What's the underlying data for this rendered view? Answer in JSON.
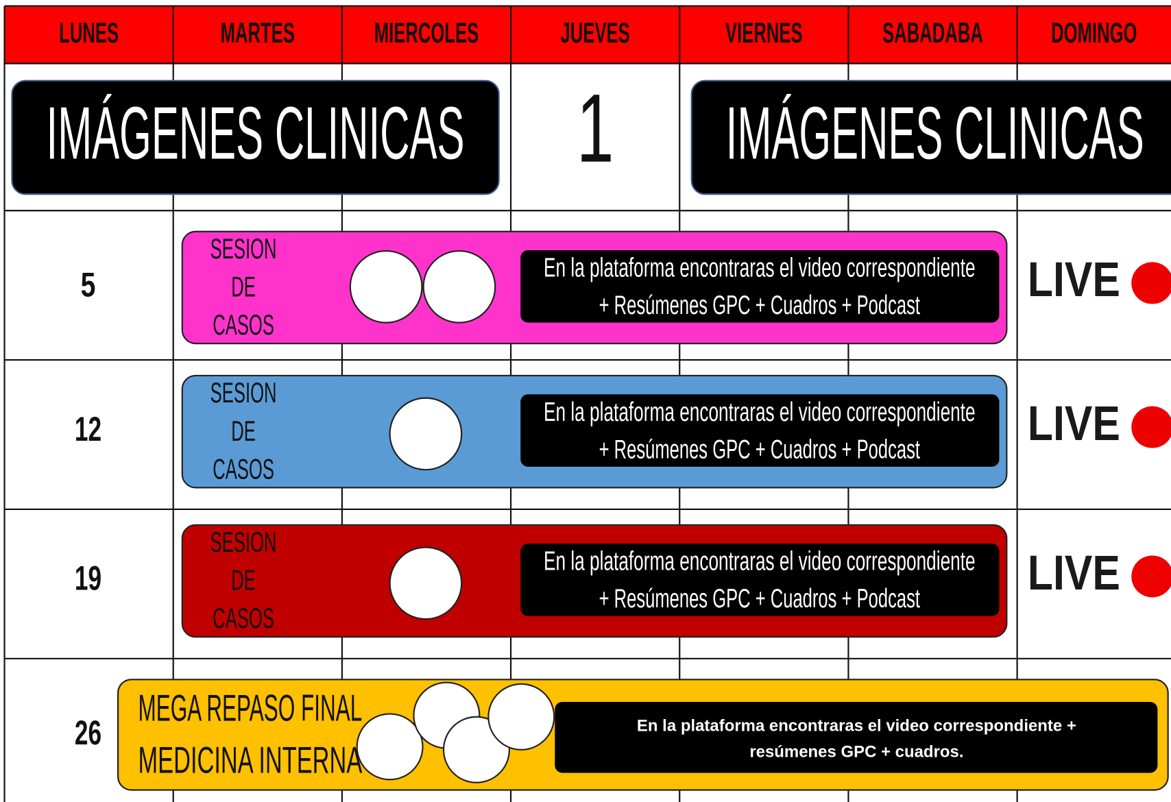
{
  "header": {
    "days": [
      "LUNES",
      "MARTES",
      "MIERCOLES",
      "JUEVES",
      "VIERNES",
      "SABADABA",
      "DOMINGO"
    ]
  },
  "weeks": [
    {
      "banner_left": "IMÁGENES CLINICAS",
      "day": "1",
      "banner_right": "IMÁGENES CLINICAS"
    },
    {
      "day": "5",
      "session": [
        "SESION",
        "DE",
        "CASOS"
      ],
      "info": [
        "En la plataforma encontraras el video correspondiente",
        "+ Resúmenes GPC + Cuadros + Podcast"
      ],
      "live": "LIVE"
    },
    {
      "day": "12",
      "session": [
        "SESION",
        "DE",
        "CASOS"
      ],
      "info": [
        "En la plataforma encontraras el video correspondiente",
        "+ Resúmenes GPC + Cuadros + Podcast"
      ],
      "live": "LIVE"
    },
    {
      "day": "19",
      "session": [
        "SESION",
        "DE",
        "CASOS"
      ],
      "info": [
        "En la plataforma encontraras el video correspondiente",
        "+ Resúmenes GPC + Cuadros + Podcast"
      ],
      "live": "LIVE"
    },
    {
      "day": "26",
      "title": [
        "MEGA REPASO FINAL",
        "MEDICINA INTERNA"
      ],
      "info": [
        "En la plataforma encontraras el video correspondiente +",
        "resúmenes GPC + cuadros."
      ]
    }
  ]
}
